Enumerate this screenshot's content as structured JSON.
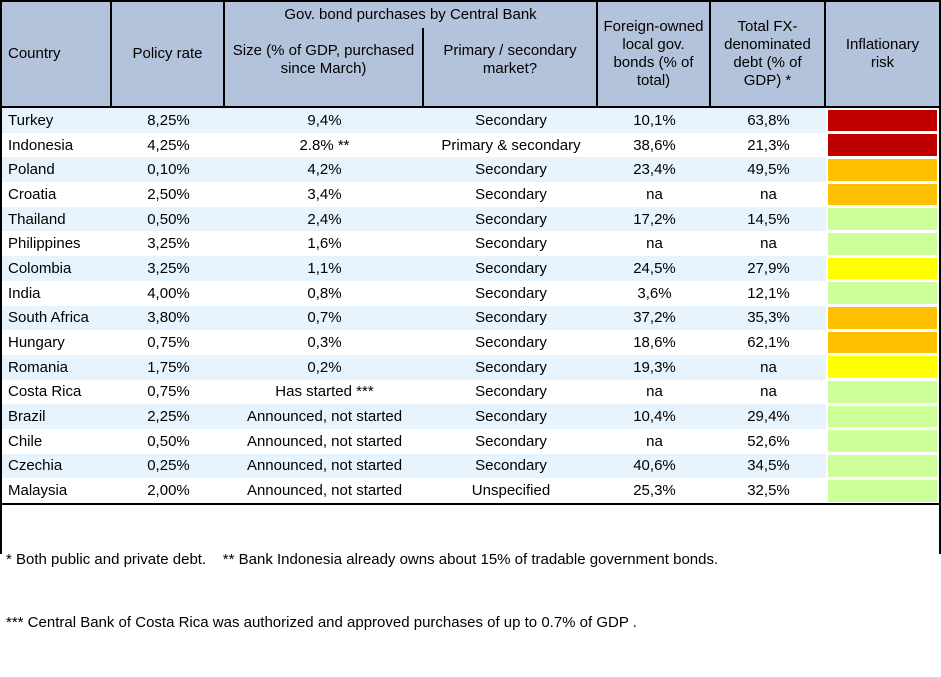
{
  "table": {
    "headers": {
      "country": "Country",
      "policy_rate": "Policy rate",
      "group": "Gov. bond purchases by Central Bank",
      "size": "Size (% of GDP, purchased since March)",
      "market": "Primary / secondary market?",
      "foreign_owned": "Foreign-owned local gov. bonds (% of total)",
      "fx_debt": "Total FX-denominated debt (% of GDP) *",
      "inflationary_risk": "Inflationary risk"
    },
    "risk_colors": {
      "high": "#C00000",
      "elevated": "#FFC000",
      "moderate": "#FFFF00",
      "low": "#CCFF99"
    },
    "rows": [
      {
        "country": "Turkey",
        "policy_rate": "8,25%",
        "size": "9,4%",
        "market": "Secondary",
        "foreign_owned": "10,1%",
        "fx_debt": "63,8%",
        "risk_color": "#C00000"
      },
      {
        "country": "Indonesia",
        "policy_rate": "4,25%",
        "size": "2.8% **",
        "market": "Primary & secondary",
        "foreign_owned": "38,6%",
        "fx_debt": "21,3%",
        "risk_color": "#C00000"
      },
      {
        "country": "Poland",
        "policy_rate": "0,10%",
        "size": "4,2%",
        "market": "Secondary",
        "foreign_owned": "23,4%",
        "fx_debt": "49,5%",
        "risk_color": "#FFC000"
      },
      {
        "country": "Croatia",
        "policy_rate": "2,50%",
        "size": "3,4%",
        "market": "Secondary",
        "foreign_owned": "na",
        "fx_debt": "na",
        "risk_color": "#FFC000"
      },
      {
        "country": "Thailand",
        "policy_rate": "0,50%",
        "size": "2,4%",
        "market": "Secondary",
        "foreign_owned": "17,2%",
        "fx_debt": "14,5%",
        "risk_color": "#CCFF99"
      },
      {
        "country": "Philippines",
        "policy_rate": "3,25%",
        "size": "1,6%",
        "market": "Secondary",
        "foreign_owned": "na",
        "fx_debt": "na",
        "risk_color": "#CCFF99"
      },
      {
        "country": "Colombia",
        "policy_rate": "3,25%",
        "size": "1,1%",
        "market": "Secondary",
        "foreign_owned": "24,5%",
        "fx_debt": "27,9%",
        "risk_color": "#FFFF00"
      },
      {
        "country": "India",
        "policy_rate": "4,00%",
        "size": "0,8%",
        "market": "Secondary",
        "foreign_owned": "3,6%",
        "fx_debt": "12,1%",
        "risk_color": "#CCFF99"
      },
      {
        "country": "South Africa",
        "policy_rate": "3,80%",
        "size": "0,7%",
        "market": "Secondary",
        "foreign_owned": "37,2%",
        "fx_debt": "35,3%",
        "risk_color": "#FFC000"
      },
      {
        "country": "Hungary",
        "policy_rate": "0,75%",
        "size": "0,3%",
        "market": "Secondary",
        "foreign_owned": "18,6%",
        "fx_debt": "62,1%",
        "risk_color": "#FFC000"
      },
      {
        "country": "Romania",
        "policy_rate": "1,75%",
        "size": "0,2%",
        "market": "Secondary",
        "foreign_owned": "19,3%",
        "fx_debt": "na",
        "risk_color": "#FFFF00"
      },
      {
        "country": "Costa Rica",
        "policy_rate": "0,75%",
        "size": "Has started ***",
        "market": "Secondary",
        "foreign_owned": "na",
        "fx_debt": "na",
        "risk_color": "#CCFF99"
      },
      {
        "country": "Brazil",
        "policy_rate": "2,25%",
        "size": "Announced, not started",
        "market": "Secondary",
        "foreign_owned": "10,4%",
        "fx_debt": "29,4%",
        "risk_color": "#CCFF99"
      },
      {
        "country": "Chile",
        "policy_rate": "0,50%",
        "size": "Announced, not started",
        "market": "Secondary",
        "foreign_owned": "na",
        "fx_debt": "52,6%",
        "risk_color": "#CCFF99"
      },
      {
        "country": "Czechia",
        "policy_rate": "0,25%",
        "size": "Announced, not started",
        "market": "Secondary",
        "foreign_owned": "40,6%",
        "fx_debt": "34,5%",
        "risk_color": "#CCFF99"
      },
      {
        "country": "Malaysia",
        "policy_rate": "2,00%",
        "size": "Announced, not started",
        "market": "Unspecified",
        "foreign_owned": "25,3%",
        "fx_debt": "32,5%",
        "risk_color": "#CCFF99"
      }
    ]
  },
  "footnotes": [
    "* Both public and private debt.    ** Bank Indonesia already owns about 15% of tradable government bonds.",
    "*** Central Bank of Costa Rica was authorized and approved purchases of up to 0.7% of GDP ."
  ],
  "colors": {
    "header_bg": "#B4C3DC",
    "row_stripe": "#E7F4FD",
    "border": "#000000"
  }
}
